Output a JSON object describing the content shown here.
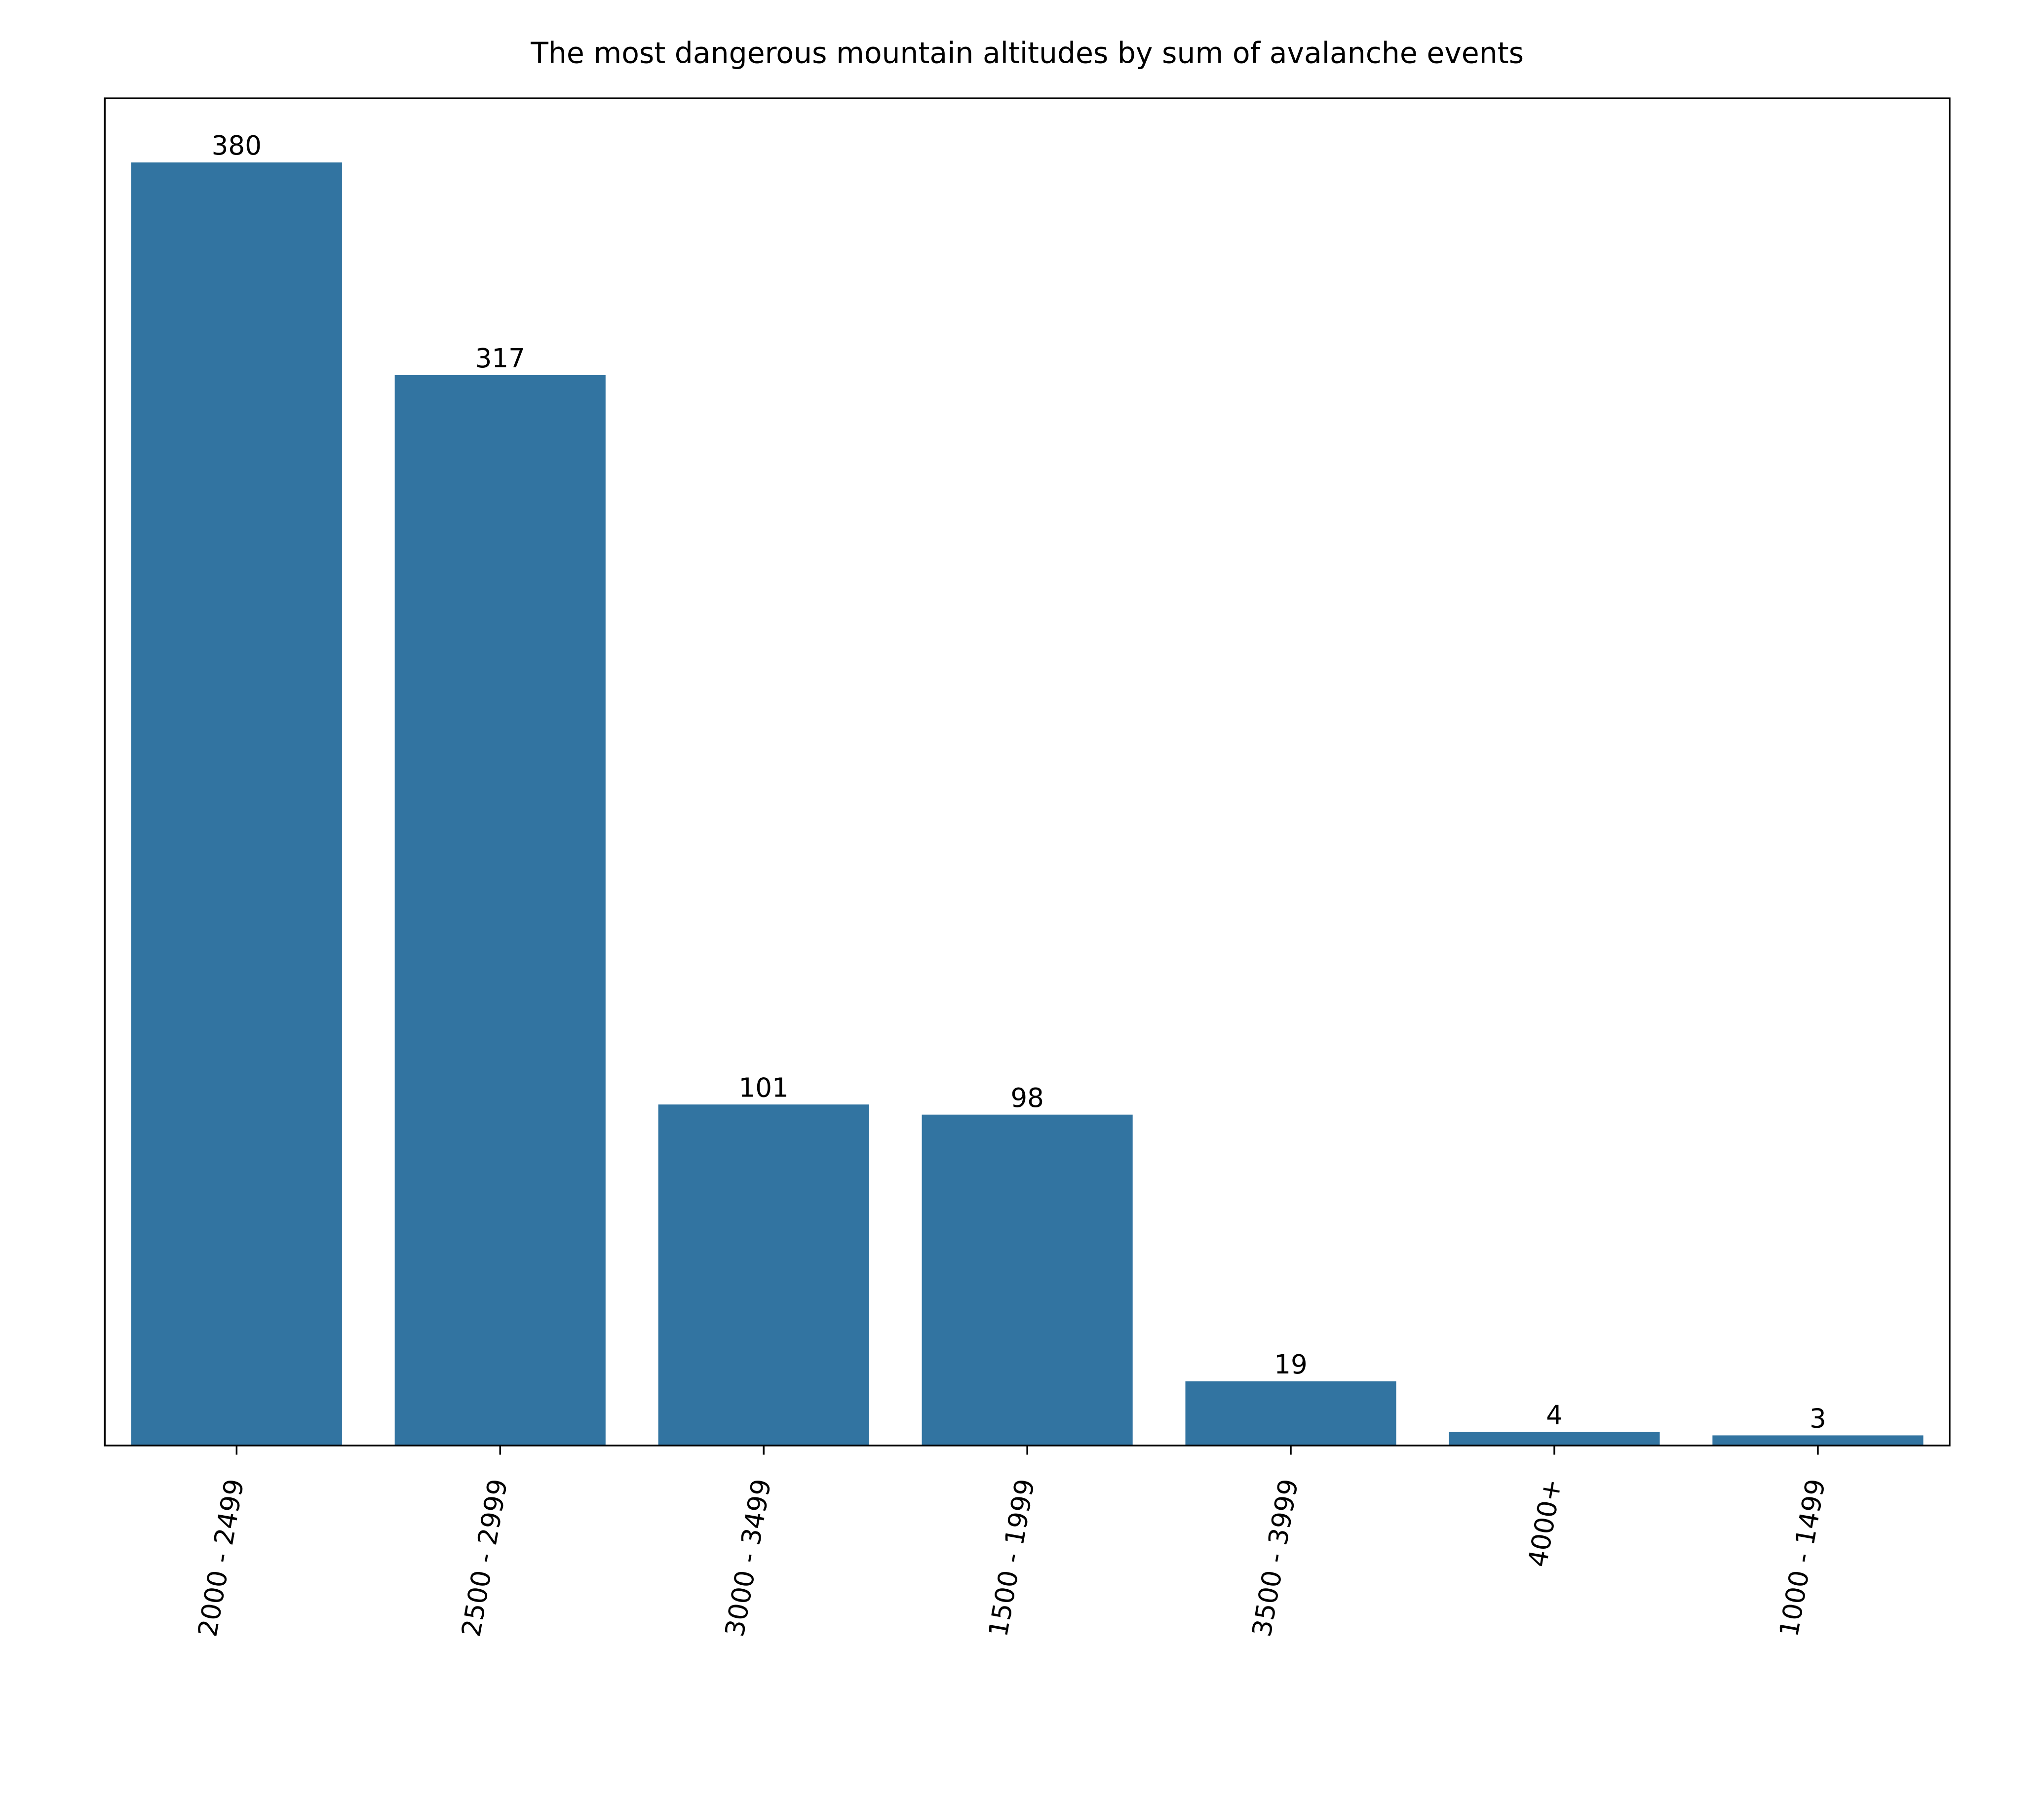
{
  "chart_data": {
    "type": "bar",
    "title": "The most dangerous mountain altitudes by sum of avalanche events",
    "categories": [
      "2000 - 2499",
      "2500 - 2999",
      "3000 - 3499",
      "1500 - 1999",
      "3500 - 3999",
      "4000+",
      "1000 - 1499"
    ],
    "values": [
      380,
      317,
      101,
      98,
      19,
      4,
      3
    ],
    "color": "#3274a1",
    "ylim": [
      0,
      399
    ]
  }
}
